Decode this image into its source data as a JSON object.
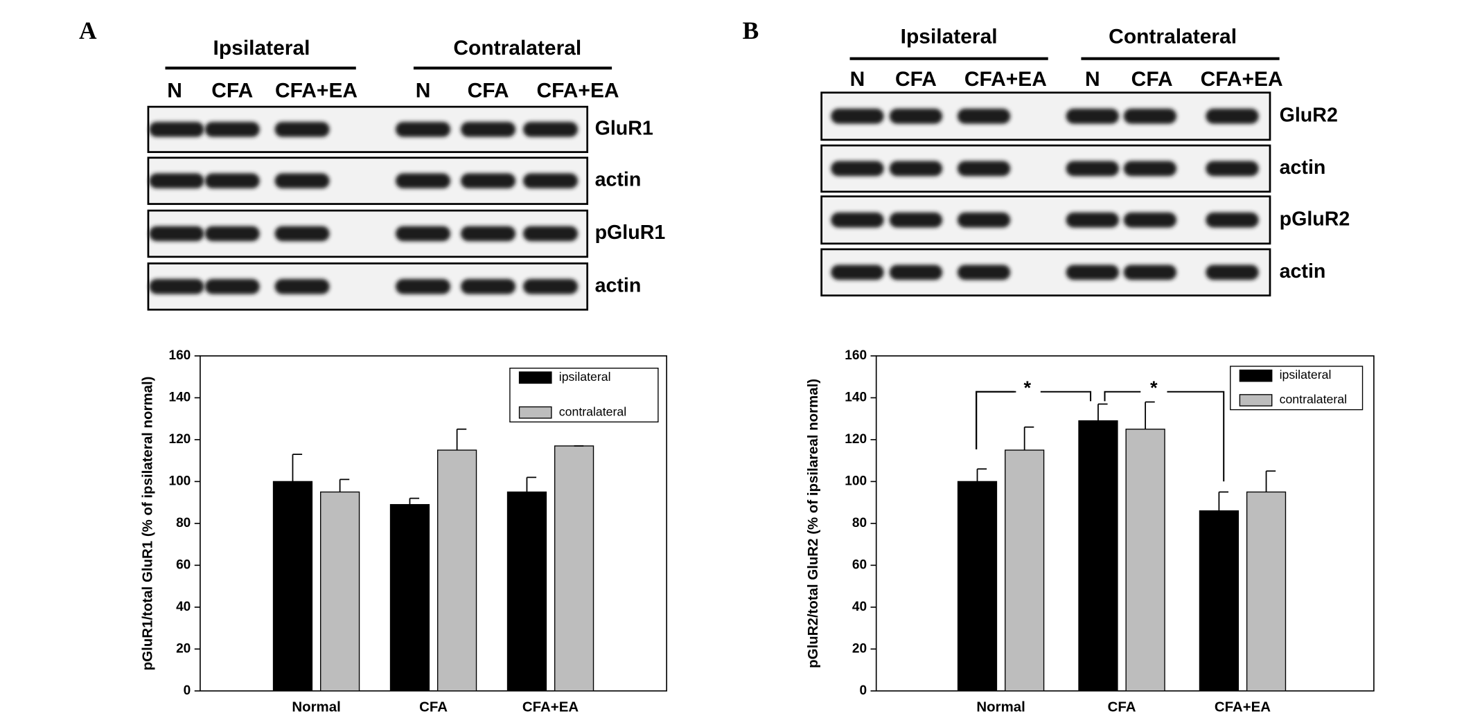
{
  "panels": [
    {
      "label": "A",
      "groups": [
        "Ipsilateral",
        "Contralateral"
      ],
      "lanes": [
        "N",
        "CFA",
        "CFA+EA",
        "N",
        "CFA",
        "CFA+EA"
      ],
      "blots": [
        "GluR1",
        "actin",
        "pGluR1",
        "actin"
      ]
    },
    {
      "label": "B",
      "groups": [
        "Ipsilateral",
        "Contralateral"
      ],
      "lanes": [
        "N",
        "CFA",
        "CFA+EA",
        "N",
        "CFA",
        "CFA+EA"
      ],
      "blots": [
        "GluR2",
        "actin",
        "pGluR2",
        "actin"
      ]
    }
  ],
  "chart_data": [
    {
      "type": "bar",
      "ylabel": "pGluR1/total GluR1 (% of ipsilateral normal)",
      "categories": [
        "Normal",
        "CFA",
        "CFA+EA"
      ],
      "series": [
        {
          "name": "ipsilateral",
          "color": "#000000",
          "values": [
            100,
            89,
            95
          ],
          "errors": [
            13,
            3,
            7
          ]
        },
        {
          "name": "contralateral",
          "color": "#bdbdbd",
          "values": [
            95,
            115,
            117
          ],
          "errors": [
            6,
            10,
            0
          ]
        }
      ],
      "ylim": [
        0,
        160
      ],
      "yticks": [
        0,
        20,
        40,
        60,
        80,
        100,
        120,
        140,
        160
      ],
      "legend": "upper right"
    },
    {
      "type": "bar",
      "ylabel": "pGluR2/total GluR2 (% of ipsilareal normal)",
      "categories": [
        "Normal",
        "CFA",
        "CFA+EA"
      ],
      "series": [
        {
          "name": "ipsilateral",
          "color": "#000000",
          "values": [
            100,
            129,
            86
          ],
          "errors": [
            6,
            8,
            9
          ]
        },
        {
          "name": "contralateral",
          "color": "#bdbdbd",
          "values": [
            115,
            125,
            95
          ],
          "errors": [
            11,
            13,
            10
          ]
        }
      ],
      "ylim": [
        0,
        160
      ],
      "yticks": [
        0,
        20,
        40,
        60,
        80,
        100,
        120,
        140,
        160
      ],
      "legend": "upper right",
      "annotations": [
        "*",
        "*"
      ]
    }
  ]
}
